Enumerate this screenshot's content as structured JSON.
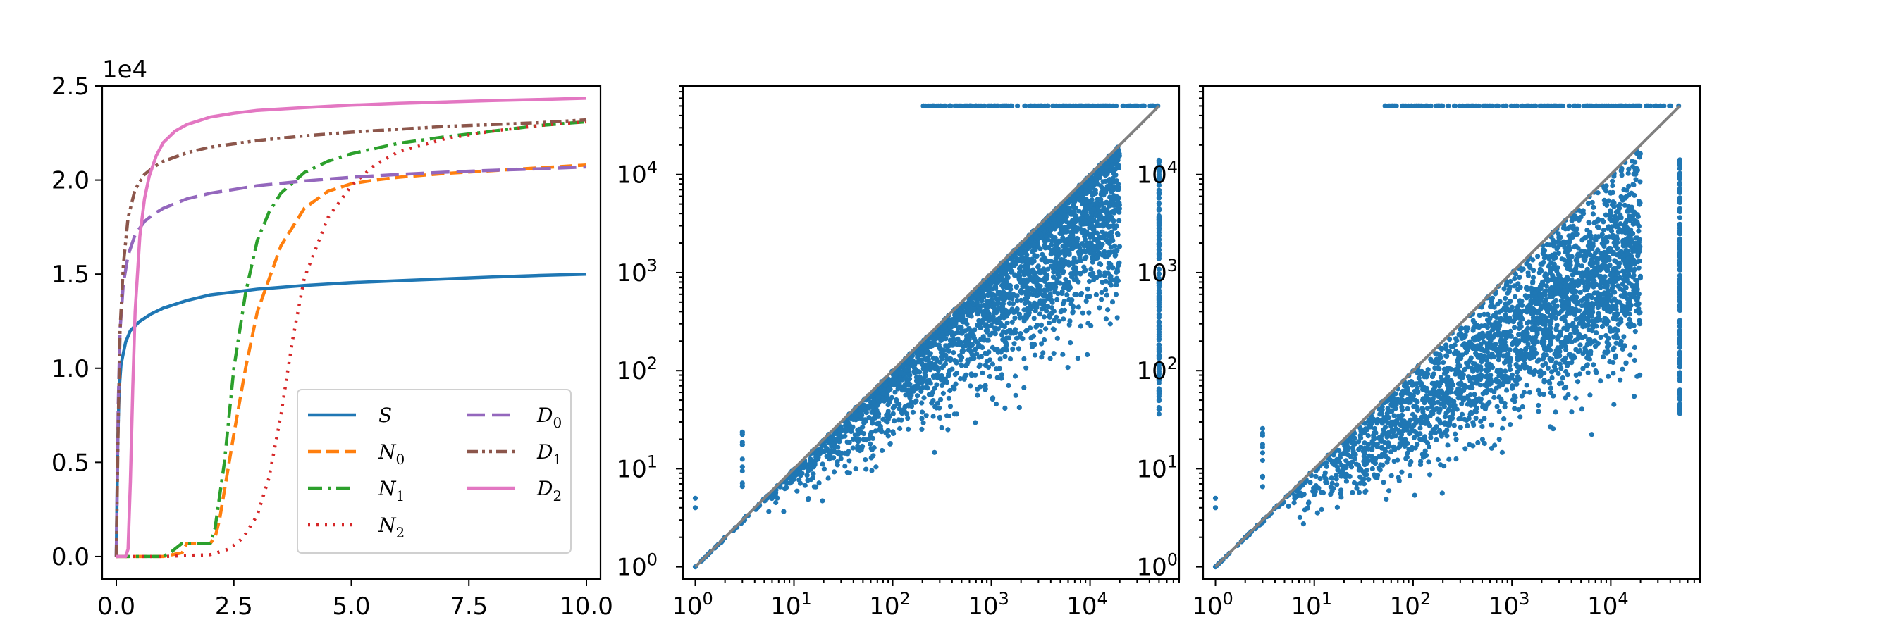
{
  "chart_data": [
    {
      "type": "line",
      "title": "",
      "xlabel": "",
      "ylabel": "",
      "y_offset_label": "1e4",
      "xlim": [
        -0.3,
        10.3
      ],
      "ylim": [
        -1200,
        25000
      ],
      "xticks": [
        0,
        2.5,
        5,
        7.5,
        10
      ],
      "xtick_labels": [
        "0.0",
        "2.5",
        "5.0",
        "7.5",
        "10.0"
      ],
      "yticks": [
        0,
        5000,
        10000,
        15000,
        20000,
        25000
      ],
      "ytick_labels": [
        "0.0",
        "0.5",
        "1.0",
        "1.5",
        "2.0",
        "2.5"
      ],
      "legend_position": "lower-right",
      "legend_columns": 2,
      "series": [
        {
          "name": "S",
          "sub": "",
          "color": "#1f77b4",
          "dash": "",
          "x": [
            0,
            0.03,
            0.06,
            0.1,
            0.2,
            0.3,
            0.5,
            0.75,
            1,
            1.5,
            2,
            3,
            4,
            5,
            6,
            7,
            8,
            9,
            10
          ],
          "y": [
            0,
            6000,
            8800,
            10200,
            11400,
            12000,
            12500,
            12900,
            13200,
            13600,
            13900,
            14200,
            14400,
            14550,
            14650,
            14750,
            14850,
            14930,
            15000
          ]
        },
        {
          "name": "N",
          "sub": "0",
          "color": "#ff7f0e",
          "dash": "18,8",
          "x": [
            0,
            0.5,
            1,
            1.4,
            1.5,
            2.0,
            2.1,
            2.2,
            2.3,
            2.5,
            2.75,
            3,
            3.5,
            4,
            4.5,
            5,
            5.5,
            6,
            7,
            8,
            9,
            10
          ],
          "y": [
            0,
            0,
            0,
            200,
            700,
            700,
            1000,
            2000,
            3500,
            6500,
            10000,
            13000,
            16500,
            18500,
            19400,
            19800,
            20000,
            20150,
            20350,
            20500,
            20650,
            20800
          ]
        },
        {
          "name": "N",
          "sub": "1",
          "color": "#2ca02c",
          "dash": "20,8,4,8",
          "x": [
            0,
            1,
            1.2,
            1.4,
            1.6,
            2.0,
            2.1,
            2.3,
            2.5,
            2.75,
            3,
            3.25,
            3.5,
            4,
            4.5,
            5,
            6,
            7,
            8,
            9,
            10
          ],
          "y": [
            0,
            0,
            300,
            700,
            700,
            700,
            1500,
            5000,
            10000,
            14000,
            16800,
            18300,
            19300,
            20400,
            21000,
            21400,
            21950,
            22300,
            22600,
            22900,
            23100
          ]
        },
        {
          "name": "N",
          "sub": "2",
          "color": "#d62728",
          "dash": "3,9",
          "x": [
            0,
            1,
            2,
            2.4,
            2.7,
            3,
            3.25,
            3.5,
            3.75,
            4,
            4.5,
            5,
            5.5,
            6,
            7,
            8,
            9,
            10
          ],
          "y": [
            0,
            0,
            100,
            400,
            1000,
            2200,
            4200,
            7500,
            11500,
            14800,
            18000,
            19700,
            20800,
            21500,
            22200,
            22600,
            22900,
            23100
          ]
        },
        {
          "name": "D",
          "sub": "0",
          "color": "#9467bd",
          "dash": "26,10",
          "x": [
            0,
            0.04,
            0.08,
            0.15,
            0.25,
            0.4,
            0.6,
            0.8,
            1,
            1.5,
            2,
            3,
            4,
            5,
            6,
            7,
            8,
            9,
            10
          ],
          "y": [
            0,
            8000,
            12000,
            14500,
            16000,
            17100,
            17800,
            18200,
            18500,
            19000,
            19300,
            19700,
            19950,
            20150,
            20300,
            20420,
            20520,
            20600,
            20700
          ]
        },
        {
          "name": "D",
          "sub": "1",
          "color": "#8c564b",
          "dash": "16,6,4,6,4,6",
          "x": [
            0,
            0.04,
            0.08,
            0.15,
            0.25,
            0.4,
            0.6,
            0.8,
            1,
            1.5,
            2,
            3,
            4,
            5,
            6,
            7,
            8,
            9,
            10
          ],
          "y": [
            0,
            7000,
            12000,
            15500,
            18000,
            19500,
            20300,
            20700,
            21000,
            21450,
            21750,
            22100,
            22350,
            22550,
            22700,
            22850,
            22950,
            23050,
            23200
          ]
        },
        {
          "name": "D",
          "sub": "2",
          "color": "#e377c2",
          "dash": "",
          "x": [
            0,
            0.2,
            0.25,
            0.3,
            0.35,
            0.4,
            0.5,
            0.6,
            0.7,
            0.85,
            1,
            1.25,
            1.5,
            2,
            2.5,
            3,
            4,
            5,
            6,
            7,
            8,
            9,
            10
          ],
          "y": [
            0,
            0,
            400,
            4000,
            9000,
            13000,
            17000,
            19000,
            20200,
            21300,
            22000,
            22600,
            22950,
            23350,
            23550,
            23700,
            23850,
            23980,
            24070,
            24150,
            24220,
            24280,
            24350
          ]
        }
      ]
    },
    {
      "type": "scatter",
      "x_scale": "log",
      "y_scale": "log",
      "xlim": [
        0.75,
        80000
      ],
      "ylim": [
        0.75,
        80000
      ],
      "tick_labels": [
        "10",
        "10",
        "10",
        "10",
        "10"
      ],
      "tick_exponents": [
        "0",
        "1",
        "2",
        "3",
        "4"
      ],
      "color": "#1f77b4",
      "reference_line": {
        "from": [
          1,
          1
        ],
        "to": [
          50000,
          50000
        ],
        "color": "#808080"
      },
      "points": {
        "seed": 7,
        "count": 2600,
        "x_log_range": [
          0.7,
          4.3
        ],
        "slope": 0.85,
        "cap": 50000,
        "cap_x_range": [
          200,
          50000
        ]
      }
    },
    {
      "type": "scatter",
      "x_scale": "log",
      "y_scale": "log",
      "xlim": [
        0.75,
        80000
      ],
      "ylim": [
        0.75,
        80000
      ],
      "tick_labels": [
        "10",
        "10",
        "10",
        "10",
        "10"
      ],
      "tick_exponents": [
        "0",
        "1",
        "2",
        "3",
        "4"
      ],
      "color": "#1f77b4",
      "reference_line": {
        "from": [
          1,
          1
        ],
        "to": [
          50000,
          50000
        ],
        "color": "#808080"
      },
      "points": {
        "seed": 13,
        "count": 2600,
        "x_log_range": [
          0.7,
          4.3
        ],
        "slope": 0.72,
        "cap": 50000,
        "cap_x_range": [
          50,
          50000
        ]
      }
    }
  ]
}
